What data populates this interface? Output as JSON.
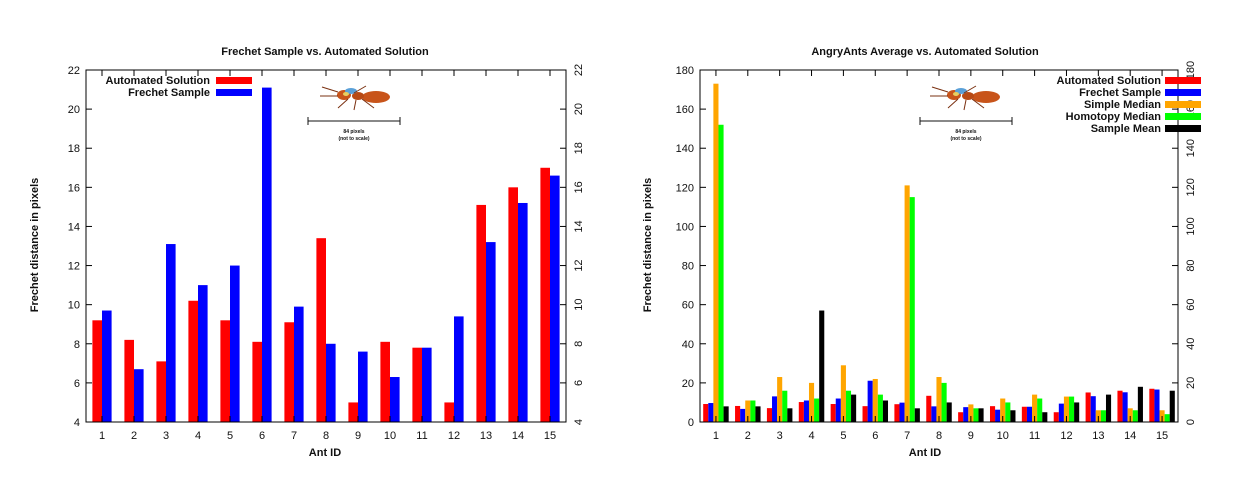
{
  "chart_data": [
    {
      "type": "bar",
      "title": "Frechet Sample vs. Automated Solution",
      "xlabel": "Ant ID",
      "ylabel": "Frechet distance in pixels",
      "categories": [
        "1",
        "2",
        "3",
        "4",
        "5",
        "6",
        "7",
        "8",
        "9",
        "10",
        "11",
        "12",
        "13",
        "14",
        "15"
      ],
      "ylim": [
        4,
        22
      ],
      "yticks": [
        4,
        6,
        8,
        10,
        12,
        14,
        16,
        18,
        20,
        22
      ],
      "y2ticks": [
        4,
        6,
        8,
        10,
        12,
        14,
        16,
        18,
        20,
        22
      ],
      "legend_position": "top-left",
      "grid": false,
      "series": [
        {
          "name": "Automated Solution",
          "color": "#ff0000",
          "values": [
            9.2,
            8.2,
            7.1,
            10.2,
            9.2,
            8.1,
            9.1,
            13.4,
            5.0,
            8.1,
            7.8,
            5.0,
            15.1,
            16.0,
            17.0
          ]
        },
        {
          "name": "Frechet Sample",
          "color": "#0000ff",
          "values": [
            9.7,
            6.7,
            13.1,
            11.0,
            12.0,
            21.1,
            9.9,
            8.0,
            7.6,
            6.3,
            7.8,
            9.4,
            13.2,
            15.2,
            16.6
          ]
        }
      ],
      "annotation": {
        "scale_label": "84 pixels",
        "scale_note": "(not to scale)",
        "image": "ant-image"
      }
    },
    {
      "type": "bar",
      "title": "AngryAnts Average vs. Automated Solution",
      "xlabel": "Ant ID",
      "ylabel": "Frechet distance in pixels",
      "categories": [
        "1",
        "2",
        "3",
        "4",
        "5",
        "6",
        "7",
        "8",
        "9",
        "10",
        "11",
        "12",
        "13",
        "14",
        "15"
      ],
      "ylim": [
        0,
        180
      ],
      "yticks": [
        0,
        20,
        40,
        60,
        80,
        100,
        120,
        140,
        160,
        180
      ],
      "y2ticks": [
        0,
        20,
        40,
        60,
        80,
        100,
        120,
        140,
        160,
        180
      ],
      "legend_position": "top-right",
      "grid": false,
      "series": [
        {
          "name": "Automated Solution",
          "color": "#ff0000",
          "values": [
            9.2,
            8.2,
            7.1,
            10.2,
            9.2,
            8.1,
            9.1,
            13.4,
            5.0,
            8.1,
            7.8,
            5.0,
            15.1,
            16.0,
            17.0
          ]
        },
        {
          "name": "Frechet Sample",
          "color": "#0000ff",
          "values": [
            9.7,
            6.7,
            13.1,
            11.0,
            12.0,
            21.1,
            9.9,
            8.0,
            7.6,
            6.3,
            7.8,
            9.4,
            13.2,
            15.2,
            16.6
          ]
        },
        {
          "name": "Simple Median",
          "color": "#ffa500",
          "values": [
            173,
            11,
            23,
            20,
            29,
            22,
            121,
            23,
            9,
            12,
            14,
            13,
            6,
            7,
            6
          ]
        },
        {
          "name": "Homotopy Median",
          "color": "#00ff00",
          "values": [
            152,
            11,
            16,
            12,
            16,
            14,
            115,
            20,
            7,
            10,
            12,
            13,
            6,
            6,
            4
          ]
        },
        {
          "name": "Sample Mean",
          "color": "#000000",
          "values": [
            8,
            8,
            7,
            57,
            14,
            11,
            7,
            10,
            7,
            6,
            5,
            10,
            14,
            18,
            16
          ]
        }
      ],
      "annotation": {
        "scale_label": "84 pixels",
        "scale_note": "(not to scale)",
        "image": "ant-image"
      }
    }
  ]
}
